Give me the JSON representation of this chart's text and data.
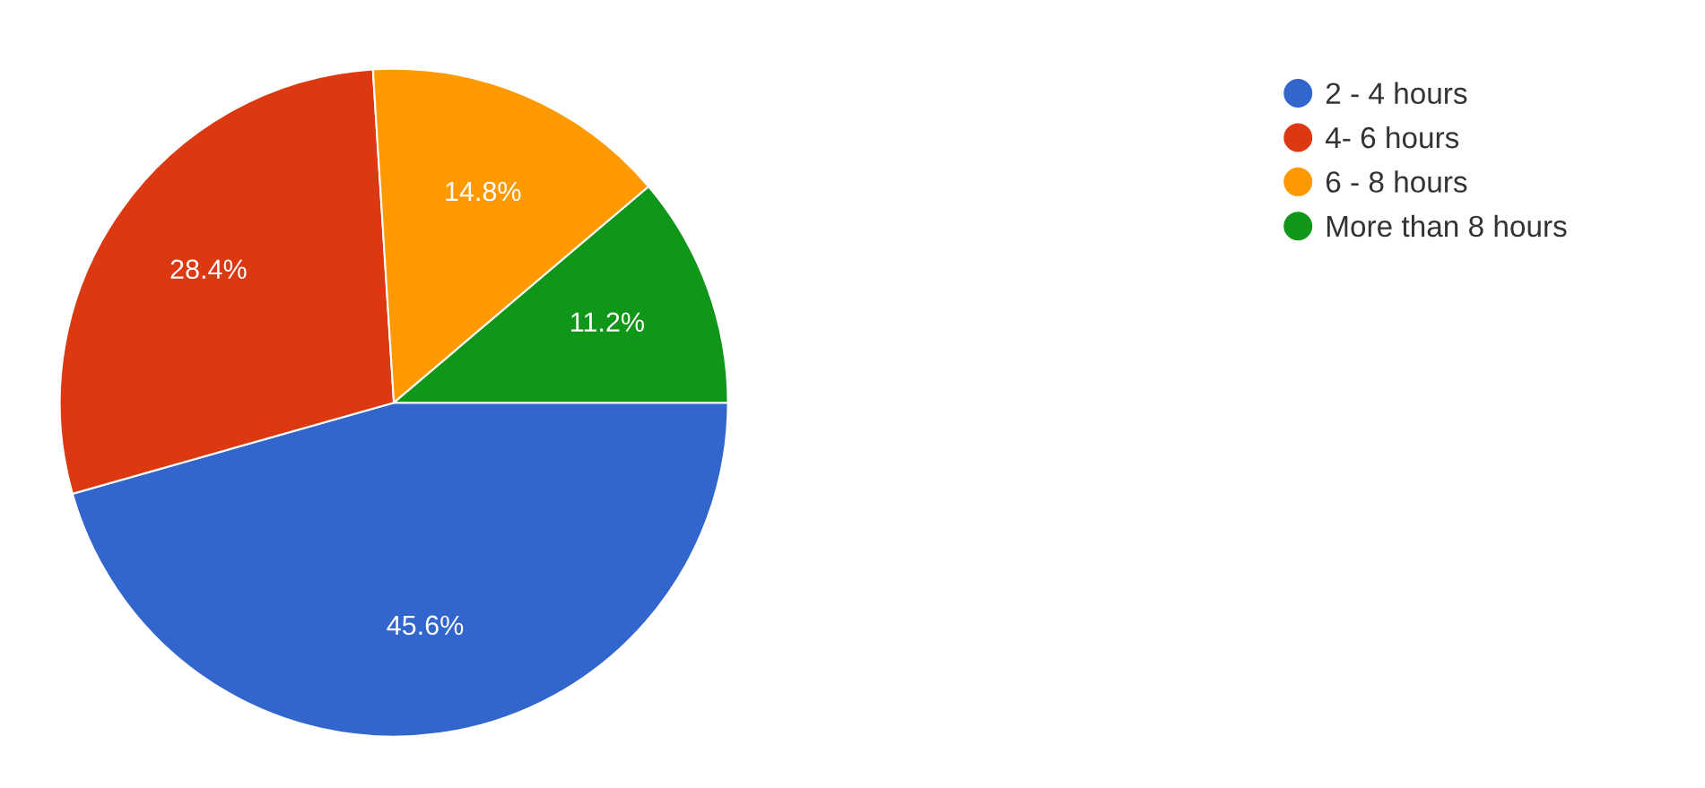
{
  "chart_data": {
    "type": "pie",
    "categories": [
      "2 - 4 hours",
      "4- 6 hours",
      "6 - 8 hours",
      "More than 8 hours"
    ],
    "values": [
      45.6,
      28.4,
      14.8,
      11.2
    ],
    "value_labels": [
      "45.6%",
      "28.4%",
      "14.8%",
      "11.2%"
    ],
    "colors": [
      "#3366cc",
      "#dc3912",
      "#ff9900",
      "#109618"
    ],
    "legend": "right"
  }
}
